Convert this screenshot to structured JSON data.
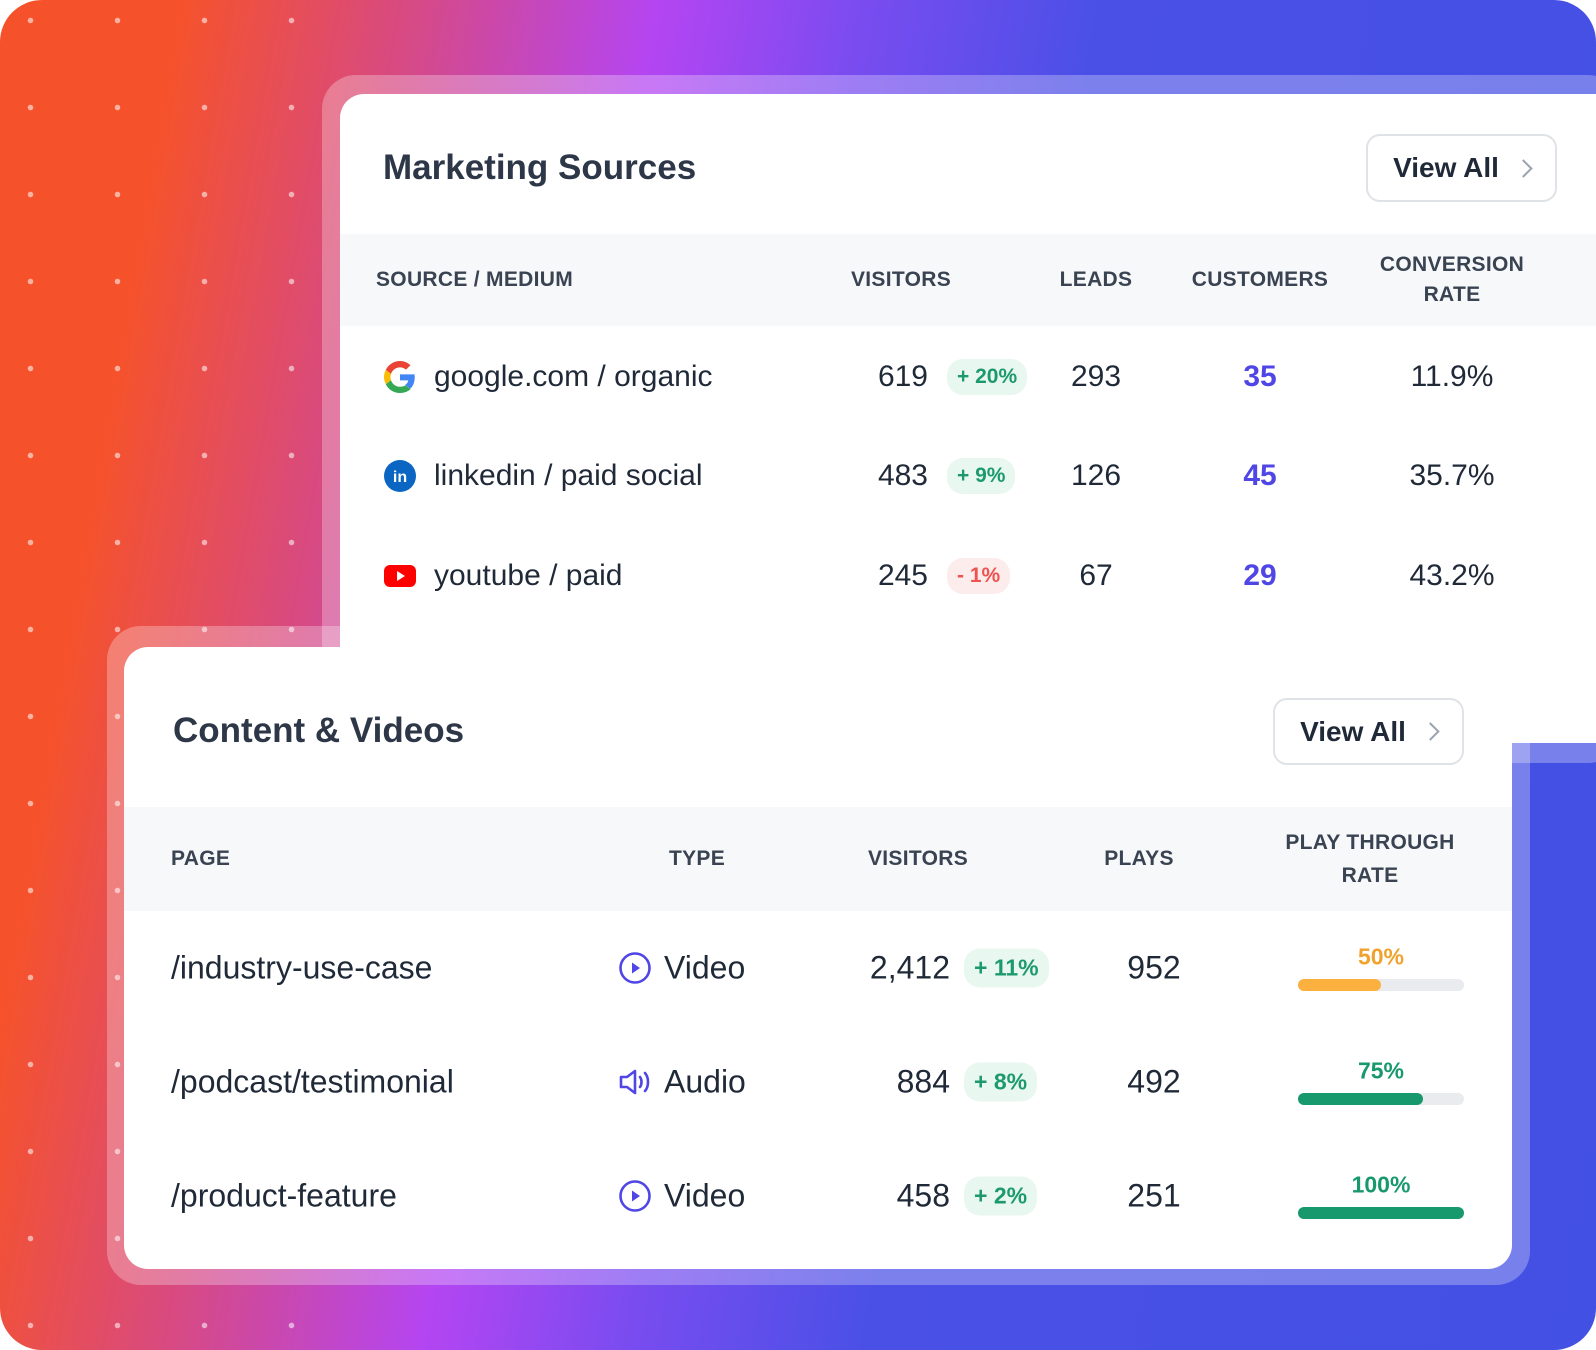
{
  "colors": {
    "up": "#1d9a6c",
    "down": "#ef5350",
    "accent": "#4f46e5",
    "orange": "#fbb040",
    "green": "#17996d"
  },
  "marketing": {
    "title": "Marketing Sources",
    "view_all": "View All",
    "headers": {
      "source": "SOURCE / MEDIUM",
      "visitors": "VISITORS",
      "leads": "LEADS",
      "customers": "CUSTOMERS",
      "conversion_1": "CONVERSION",
      "conversion_2": "RATE"
    },
    "rows": [
      {
        "icon": "google-icon",
        "source": "google.com / organic",
        "visitors": "619",
        "change": "+ 20%",
        "trend": "up",
        "leads": "293",
        "customers": "35",
        "rate": "11.9%"
      },
      {
        "icon": "linkedin-icon",
        "source": "linkedin / paid social",
        "visitors": "483",
        "change": "+ 9%",
        "trend": "up",
        "leads": "126",
        "customers": "45",
        "rate": "35.7%"
      },
      {
        "icon": "youtube-icon",
        "source": "youtube / paid",
        "visitors": "245",
        "change": "- 1%",
        "trend": "down",
        "leads": "67",
        "customers": "29",
        "rate": "43.2%"
      }
    ]
  },
  "content": {
    "title": "Content & Videos",
    "view_all": "View All",
    "headers": {
      "page": "PAGE",
      "type": "TYPE",
      "visitors": "VISITORS",
      "plays": "PLAYS",
      "ptr_1": "PLAY THROUGH",
      "ptr_2": "RATE"
    },
    "rows": [
      {
        "page": "/industry-use-case",
        "type_icon": "play-circle-icon",
        "type": "Video",
        "visitors": "2,412",
        "change": "+ 11%",
        "plays": "952",
        "rate_label": "50%",
        "rate": 50,
        "color": "#fbb040",
        "label_color": "#f0a22e"
      },
      {
        "page": "/podcast/testimonial",
        "type_icon": "speaker-icon",
        "type": "Audio",
        "visitors": "884",
        "change": "+ 8%",
        "plays": "492",
        "rate_label": "75%",
        "rate": 75,
        "color": "#17996d",
        "label_color": "#17996d"
      },
      {
        "page": "/product-feature",
        "type_icon": "play-circle-icon",
        "type": "Video",
        "visitors": "458",
        "change": "+ 2%",
        "plays": "251",
        "rate_label": "100%",
        "rate": 100,
        "color": "#17996d",
        "label_color": "#17996d"
      }
    ]
  }
}
